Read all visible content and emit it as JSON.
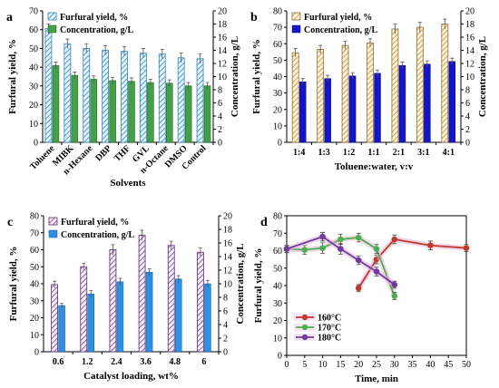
{
  "chart_data": [
    {
      "panel": "a",
      "type": "bar",
      "xlabel": "Solvents",
      "ylabel": "Furfural yield, %",
      "y2label": "Concentration, g/L",
      "ylim": [
        0,
        70
      ],
      "y2lim": [
        0,
        20
      ],
      "yticks": [
        0,
        10,
        20,
        30,
        40,
        50,
        60,
        70
      ],
      "y2ticks": [
        0,
        2,
        4,
        6,
        8,
        10,
        12,
        14,
        16,
        18,
        20
      ],
      "categories": [
        "Toluene",
        "MIBK",
        "n-Hexane",
        "DBP",
        "THF",
        "GVL",
        "n-Octane",
        "DMSO",
        "Control"
      ],
      "legend_position": "top-left",
      "series": [
        {
          "name": "Furfural yield, %",
          "axis": "left",
          "values": [
            60.5,
            52.5,
            50,
            49,
            48.5,
            47.5,
            47,
            45,
            44.5
          ],
          "errors": [
            2.5,
            2.5,
            2.5,
            2.5,
            2.5,
            2.5,
            2.5,
            2.5,
            2.5
          ]
        },
        {
          "name": "Concentration, g/L",
          "axis": "right",
          "values": [
            11.7,
            10.2,
            9.6,
            9.4,
            9.3,
            9.1,
            9.0,
            8.6,
            8.6
          ],
          "errors": [
            0.5,
            0.5,
            0.5,
            0.5,
            0.5,
            0.5,
            0.5,
            0.5,
            0.5
          ]
        }
      ]
    },
    {
      "panel": "b",
      "type": "bar",
      "xlabel": "Toluene:water, v:v",
      "ylabel": "Furfural yield, %",
      "y2label": "Concentration, g/L",
      "ylim": [
        0,
        80
      ],
      "y2lim": [
        0,
        20
      ],
      "yticks": [
        0,
        10,
        20,
        30,
        40,
        50,
        60,
        70,
        80
      ],
      "y2ticks": [
        0,
        2,
        4,
        6,
        8,
        10,
        12,
        14,
        16,
        18,
        20
      ],
      "categories": [
        "1:4",
        "1:3",
        "1:2",
        "1:1",
        "2:1",
        "3:1",
        "4:1"
      ],
      "legend_position": "top-left",
      "series": [
        {
          "name": "Furfural yield, %",
          "axis": "left",
          "values": [
            54.5,
            56.5,
            59,
            60.5,
            69,
            70,
            72
          ],
          "errors": [
            2.5,
            2.5,
            2.5,
            2.5,
            3,
            3,
            3
          ]
        },
        {
          "name": "Concentration, g/L",
          "axis": "right",
          "values": [
            9.2,
            9.7,
            10.1,
            10.5,
            11.7,
            11.9,
            12.3
          ],
          "errors": [
            0.5,
            0.5,
            0.5,
            0.5,
            0.5,
            0.5,
            0.5
          ]
        }
      ]
    },
    {
      "panel": "c",
      "type": "bar",
      "xlabel": "Catalyst loading, wt%",
      "ylabel": "Furfural yield, %",
      "y2label": "Concentration, g/L",
      "ylim": [
        0,
        80
      ],
      "y2lim": [
        0,
        20
      ],
      "yticks": [
        0,
        10,
        20,
        30,
        40,
        50,
        60,
        70,
        80
      ],
      "y2ticks": [
        0,
        2,
        4,
        6,
        8,
        10,
        12,
        14,
        16,
        18,
        20
      ],
      "categories": [
        "0.6",
        "1.2",
        "2.4",
        "3.6",
        "4.8",
        "6"
      ],
      "legend_position": "top-left",
      "series": [
        {
          "name": "Furfural yield, %",
          "axis": "left",
          "values": [
            39.5,
            50,
            60,
            68.5,
            62.5,
            58.5
          ],
          "errors": [
            2,
            2,
            3,
            3,
            2.5,
            2.5
          ]
        },
        {
          "name": "Concentration, g/L",
          "axis": "right",
          "values": [
            6.8,
            8.5,
            10.3,
            11.7,
            10.7,
            10.0
          ],
          "errors": [
            0.3,
            0.5,
            0.5,
            0.5,
            0.5,
            0.5
          ]
        }
      ]
    },
    {
      "panel": "d",
      "type": "line",
      "xlabel": "Time, min",
      "ylabel": "Furfural yield, %",
      "xlim": [
        0,
        50
      ],
      "ylim": [
        0,
        80
      ],
      "xticks": [
        0,
        5,
        10,
        15,
        20,
        25,
        30,
        35,
        40,
        45,
        50
      ],
      "yticks": [
        0,
        10,
        20,
        30,
        40,
        50,
        60,
        70,
        80
      ],
      "legend_position": "bottom-left",
      "series": [
        {
          "name": "160°C",
          "color": "#c0392b",
          "x": [
            20,
            25,
            30,
            40,
            50
          ],
          "y": [
            38.5,
            55,
            66.5,
            63,
            61.5
          ],
          "errors": [
            2,
            2.5,
            2.5,
            2.5,
            2
          ]
        },
        {
          "name": "170°C",
          "color": "#4caf50",
          "x": [
            0,
            5,
            10,
            15,
            20,
            25,
            30
          ],
          "y": [
            61,
            60.5,
            61.5,
            66.5,
            67.5,
            61,
            34
          ],
          "errors": [
            2,
            2.5,
            3,
            3,
            2.5,
            2.5,
            2
          ]
        },
        {
          "name": "180°C",
          "color": "#6f3b9e",
          "x": [
            0,
            10,
            15,
            20,
            25,
            30
          ],
          "y": [
            61,
            68,
            61,
            54.5,
            48,
            40.5
          ],
          "errors": [
            2,
            2.5,
            3,
            2.5,
            2.5,
            2
          ]
        }
      ]
    }
  ]
}
